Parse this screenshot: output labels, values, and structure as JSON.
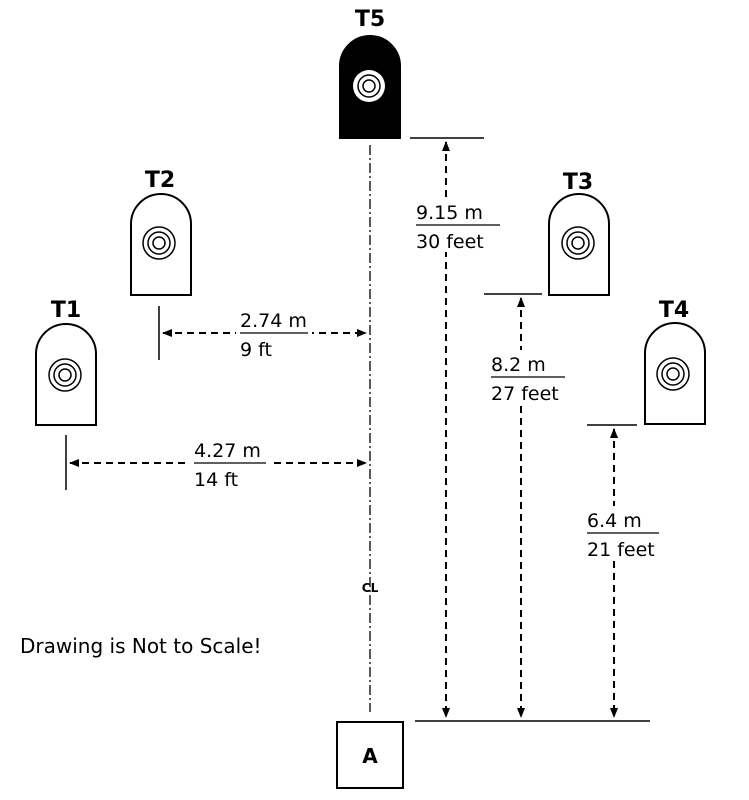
{
  "targets": {
    "t1": "T1",
    "t2": "T2",
    "t3": "T3",
    "t4": "T4",
    "t5": "T5"
  },
  "measurements": {
    "t5_dist": {
      "metric": "9.15 m",
      "imperial": "30 feet"
    },
    "t3_dist": {
      "metric": "8.2 m",
      "imperial": "27 feet"
    },
    "t4_dist": {
      "metric": "6.4 m",
      "imperial": "21 feet"
    },
    "t2_offset": {
      "metric": "2.74 m",
      "imperial": "9 ft"
    },
    "t1_offset": {
      "metric": "4.27 m",
      "imperial": "14 ft"
    }
  },
  "centerline_label": "CL",
  "shooter_box_label": "A",
  "note": "Drawing is Not to Scale!",
  "colors": {
    "ink": "#000000",
    "paper": "#ffffff"
  }
}
